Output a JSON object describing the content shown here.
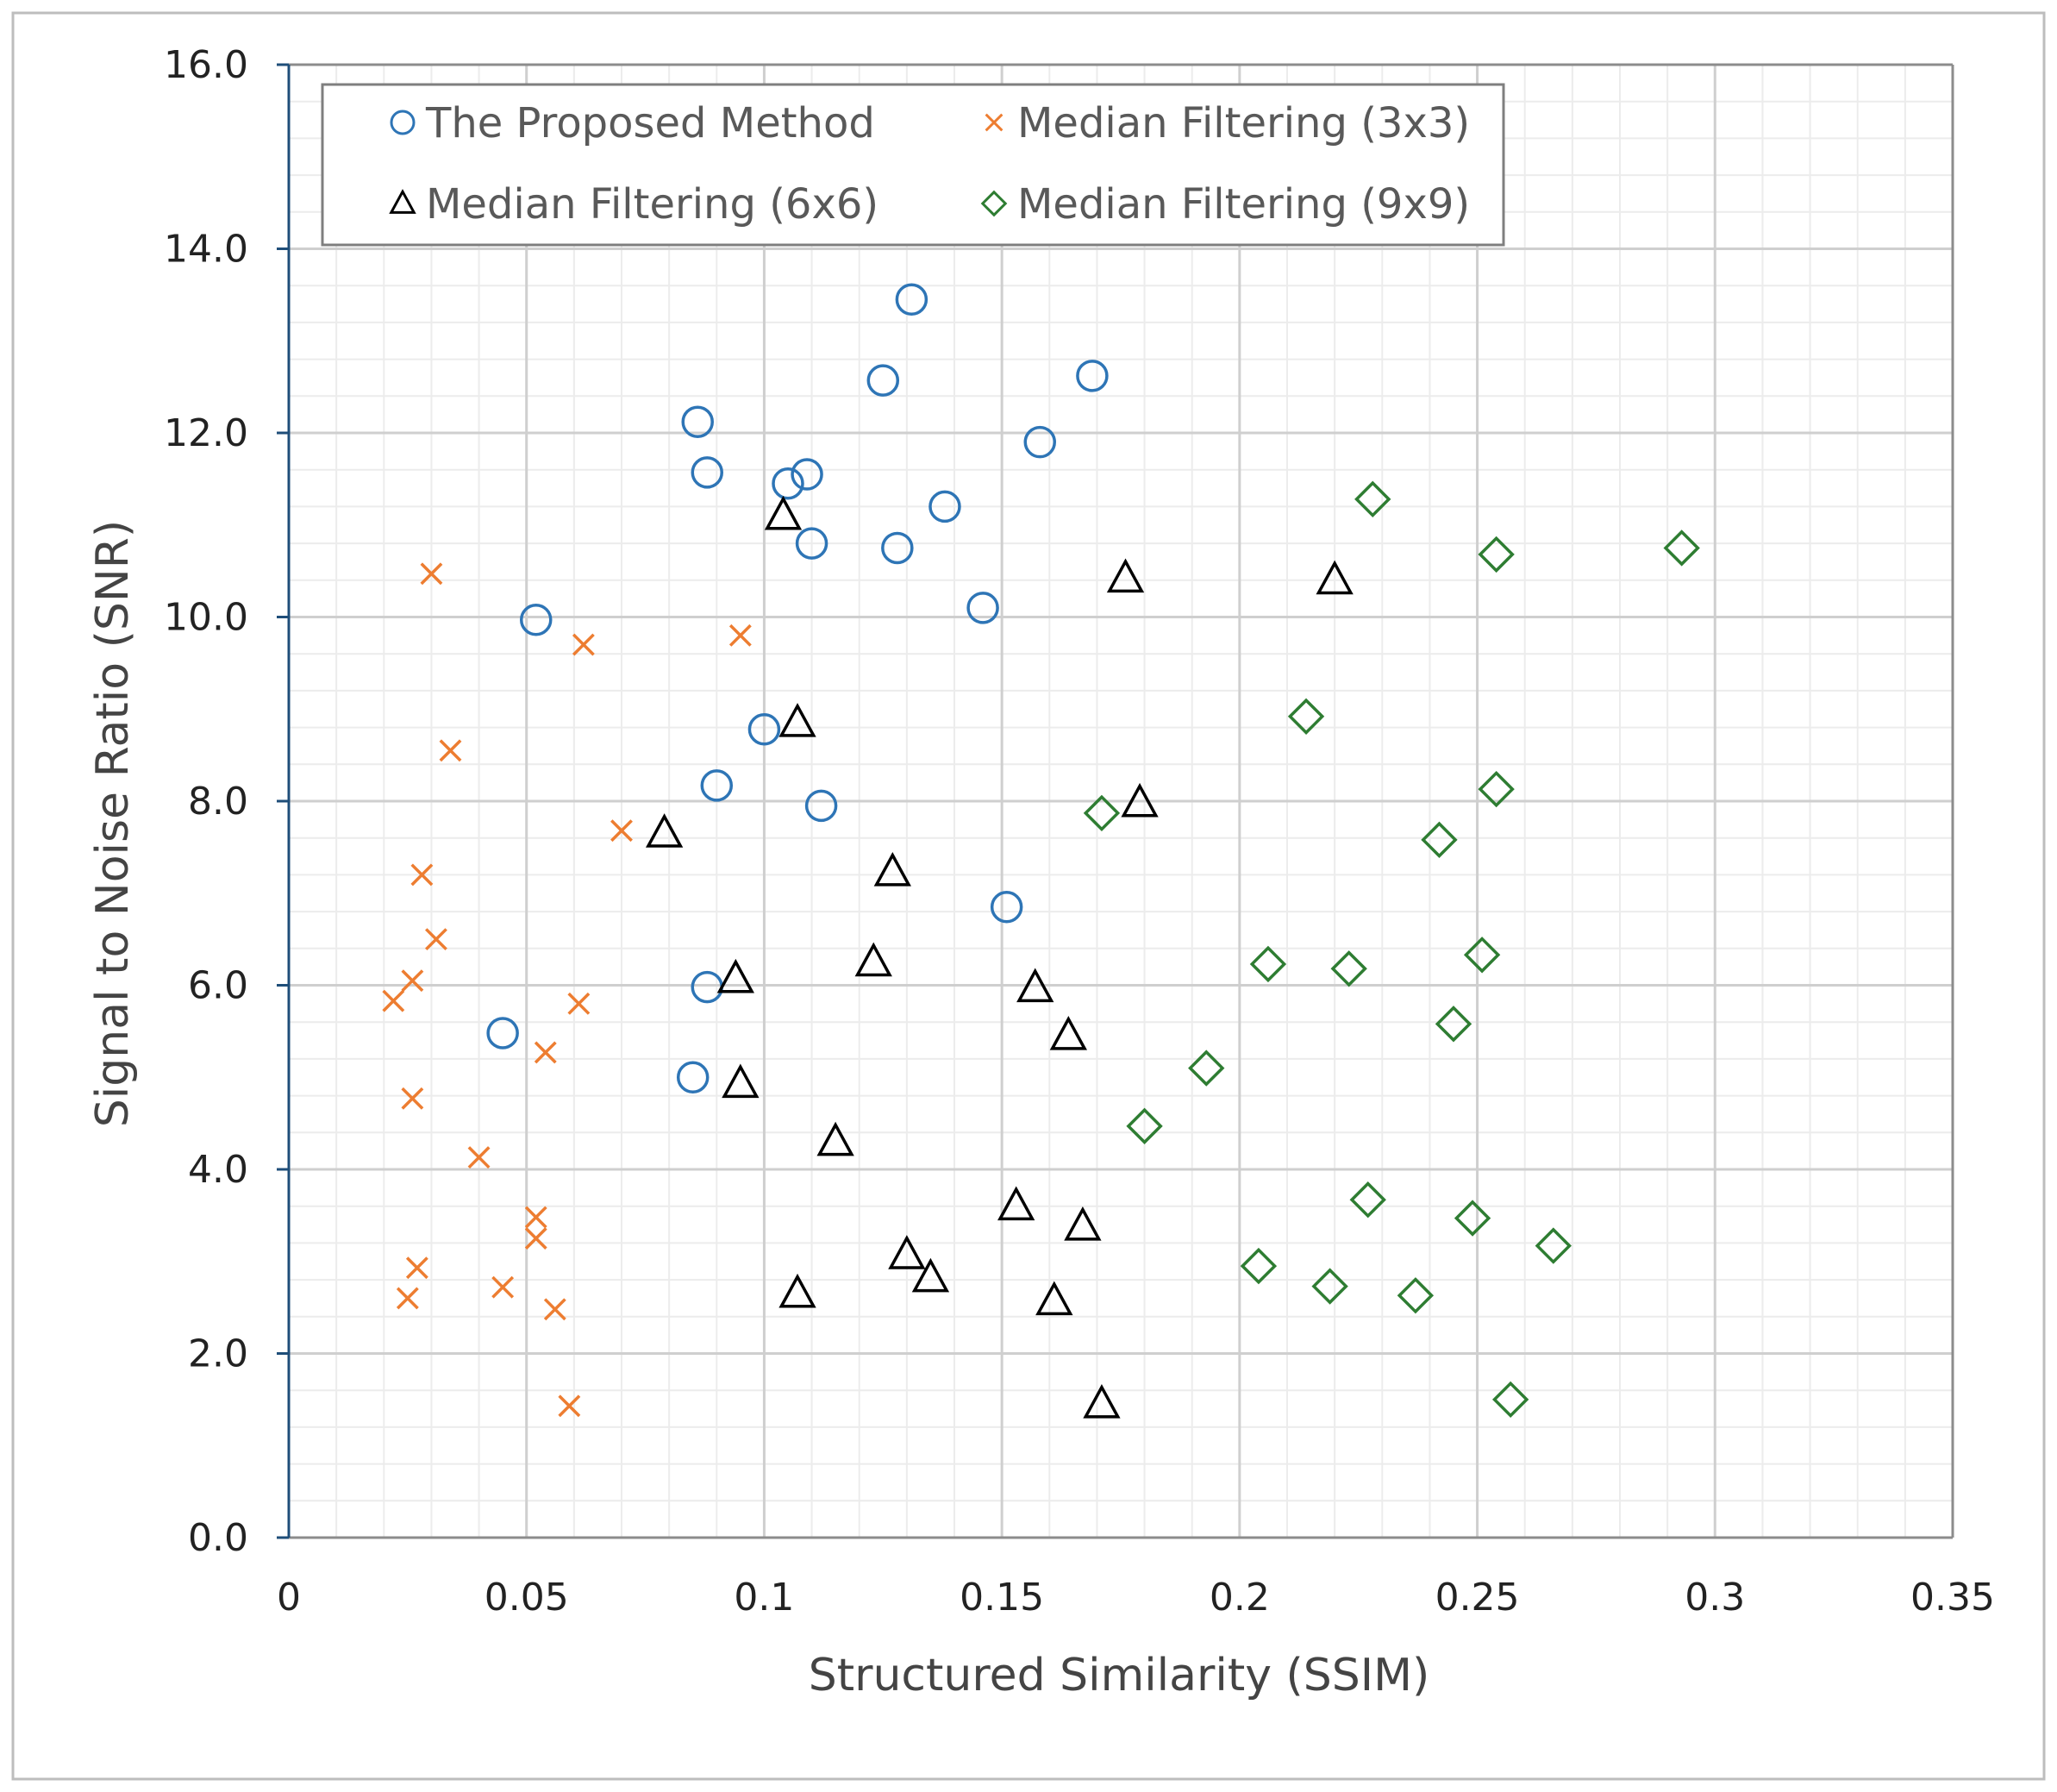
{
  "chart_data": {
    "type": "scatter",
    "xlabel": "Structured Similarity (SSIM)",
    "ylabel": "Signal to Noise Ratio (SNR)",
    "xlim": [
      0,
      0.35
    ],
    "ylim": [
      0,
      16
    ],
    "x_major_step": 0.05,
    "x_minor_step": 0.01,
    "y_major_step": 2,
    "y_minor_step": 0.4,
    "x_ticks": [
      "0",
      "0.05",
      "0.1",
      "0.15",
      "0.2",
      "0.25",
      "0.3",
      "0.35"
    ],
    "y_ticks": [
      "0.0",
      "2.0",
      "4.0",
      "6.0",
      "8.0",
      "10.0",
      "12.0",
      "14.0",
      "16.0"
    ],
    "grid": true,
    "legend_placement": "top-left",
    "series": [
      {
        "name": "The Proposed Method",
        "marker": "circle",
        "color": "#2E75B6",
        "points": [
          [
            0.131,
            13.45
          ],
          [
            0.125,
            12.57
          ],
          [
            0.169,
            12.62
          ],
          [
            0.086,
            12.12
          ],
          [
            0.158,
            11.9
          ],
          [
            0.088,
            11.57
          ],
          [
            0.105,
            11.45
          ],
          [
            0.109,
            11.55
          ],
          [
            0.138,
            11.2
          ],
          [
            0.11,
            10.8
          ],
          [
            0.128,
            10.75
          ],
          [
            0.052,
            9.97
          ],
          [
            0.146,
            10.1
          ],
          [
            0.1,
            8.78
          ],
          [
            0.09,
            8.17
          ],
          [
            0.112,
            7.95
          ],
          [
            0.151,
            6.85
          ],
          [
            0.088,
            5.98
          ],
          [
            0.045,
            5.48
          ],
          [
            0.085,
            5.0
          ]
        ]
      },
      {
        "name": "Median Filtering (3x3)",
        "marker": "x",
        "color": "#ED7D31",
        "points": [
          [
            0.03,
            10.47
          ],
          [
            0.062,
            9.7
          ],
          [
            0.095,
            9.8
          ],
          [
            0.034,
            8.55
          ],
          [
            0.07,
            7.68
          ],
          [
            0.028,
            7.2
          ],
          [
            0.031,
            6.5
          ],
          [
            0.026,
            6.05
          ],
          [
            0.022,
            5.83
          ],
          [
            0.061,
            5.8
          ],
          [
            0.054,
            5.27
          ],
          [
            0.026,
            4.77
          ],
          [
            0.04,
            4.13
          ],
          [
            0.052,
            3.48
          ],
          [
            0.052,
            3.25
          ],
          [
            0.027,
            2.93
          ],
          [
            0.025,
            2.6
          ],
          [
            0.045,
            2.72
          ],
          [
            0.056,
            2.48
          ],
          [
            0.059,
            1.43
          ]
        ]
      },
      {
        "name": "Median Filtering (6x6)",
        "marker": "triangle",
        "color": "#000000",
        "points": [
          [
            0.104,
            11.1
          ],
          [
            0.176,
            10.42
          ],
          [
            0.22,
            10.4
          ],
          [
            0.107,
            8.85
          ],
          [
            0.179,
            7.98
          ],
          [
            0.079,
            7.65
          ],
          [
            0.127,
            7.23
          ],
          [
            0.123,
            6.25
          ],
          [
            0.094,
            6.07
          ],
          [
            0.157,
            5.97
          ],
          [
            0.164,
            5.45
          ],
          [
            0.095,
            4.93
          ],
          [
            0.115,
            4.3
          ],
          [
            0.153,
            3.6
          ],
          [
            0.167,
            3.38
          ],
          [
            0.13,
            3.07
          ],
          [
            0.135,
            2.82
          ],
          [
            0.107,
            2.65
          ],
          [
            0.161,
            2.57
          ],
          [
            0.171,
            1.45
          ]
        ]
      },
      {
        "name": "Median Filtering (9x9)",
        "marker": "diamond",
        "color": "#2E7D32",
        "points": [
          [
            0.228,
            11.28
          ],
          [
            0.254,
            10.68
          ],
          [
            0.293,
            10.75
          ],
          [
            0.214,
            8.92
          ],
          [
            0.254,
            8.13
          ],
          [
            0.171,
            7.87
          ],
          [
            0.242,
            7.58
          ],
          [
            0.251,
            6.33
          ],
          [
            0.206,
            6.23
          ],
          [
            0.223,
            6.18
          ],
          [
            0.245,
            5.58
          ],
          [
            0.193,
            5.1
          ],
          [
            0.18,
            4.47
          ],
          [
            0.227,
            3.67
          ],
          [
            0.249,
            3.47
          ],
          [
            0.266,
            3.17
          ],
          [
            0.204,
            2.95
          ],
          [
            0.219,
            2.73
          ],
          [
            0.237,
            2.63
          ],
          [
            0.257,
            1.5
          ]
        ]
      }
    ]
  }
}
